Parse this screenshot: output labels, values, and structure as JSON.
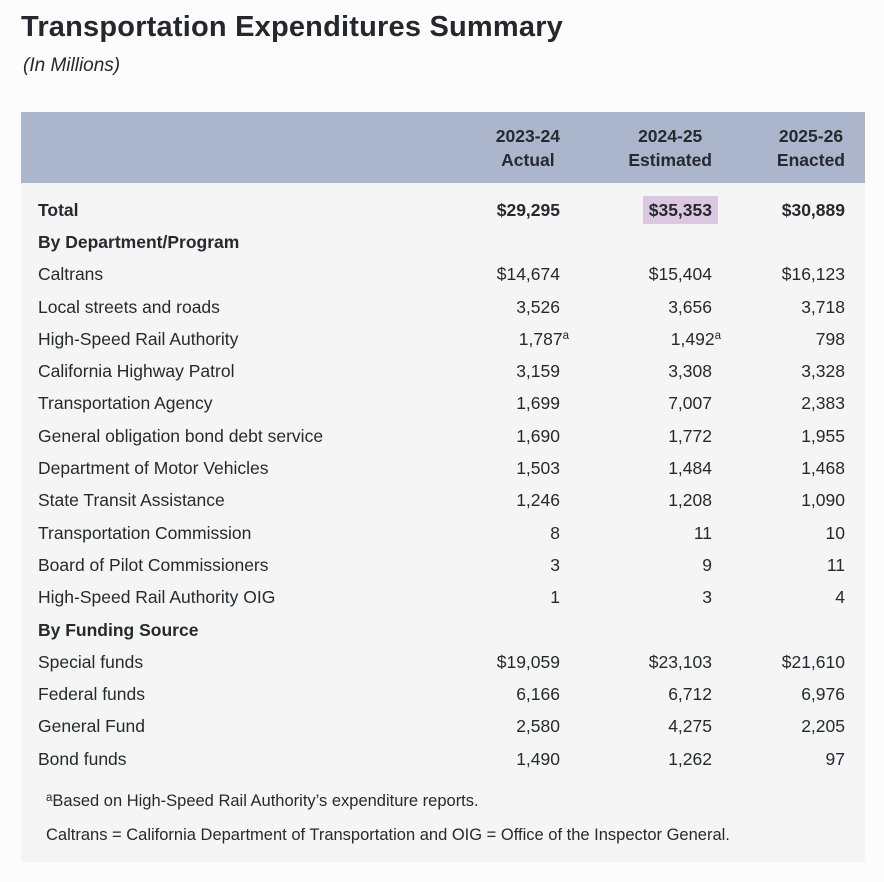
{
  "page": {
    "title": "Transportation Expenditures Summary",
    "subtitle": "(In Millions)"
  },
  "colors": {
    "header_bg": "#abb6cc",
    "body_bg": "#f5f5f6",
    "highlight_bg": "#dbc8e0",
    "text": "#26292e",
    "page_bg": "#fcfcfd"
  },
  "table": {
    "columns": [
      {
        "line1": "2023-24",
        "line2": "Actual"
      },
      {
        "line1": "2024-25",
        "line2": "Estimated"
      },
      {
        "line1": "2025-26",
        "line2": "Enacted"
      }
    ],
    "rows": [
      {
        "label": "Total",
        "style": "bold",
        "values": [
          "$29,295",
          "$35,353",
          "$30,889"
        ],
        "highlight": [
          false,
          true,
          false
        ],
        "sup": [
          "",
          "",
          ""
        ]
      },
      {
        "label": "By Department/Program",
        "style": "section",
        "values": [
          "",
          "",
          ""
        ],
        "highlight": [
          false,
          false,
          false
        ],
        "sup": [
          "",
          "",
          ""
        ]
      },
      {
        "label": "Caltrans",
        "style": "",
        "values": [
          "$14,674",
          "$15,404",
          "$16,123"
        ],
        "highlight": [
          false,
          false,
          false
        ],
        "sup": [
          "",
          "",
          ""
        ]
      },
      {
        "label": "Local streets and roads",
        "style": "",
        "values": [
          "3,526",
          "3,656",
          "3,718"
        ],
        "highlight": [
          false,
          false,
          false
        ],
        "sup": [
          "",
          "",
          ""
        ]
      },
      {
        "label": "High-Speed Rail Authority",
        "style": "",
        "values": [
          "1,787",
          "1,492",
          "798"
        ],
        "highlight": [
          false,
          false,
          false
        ],
        "sup": [
          "a",
          "a",
          ""
        ]
      },
      {
        "label": "California Highway Patrol",
        "style": "",
        "values": [
          "3,159",
          "3,308",
          "3,328"
        ],
        "highlight": [
          false,
          false,
          false
        ],
        "sup": [
          "",
          "",
          ""
        ]
      },
      {
        "label": "Transportation Agency",
        "style": "",
        "values": [
          "1,699",
          "7,007",
          "2,383"
        ],
        "highlight": [
          false,
          false,
          false
        ],
        "sup": [
          "",
          "",
          ""
        ]
      },
      {
        "label": "General obligation bond debt service",
        "style": "",
        "values": [
          "1,690",
          "1,772",
          "1,955"
        ],
        "highlight": [
          false,
          false,
          false
        ],
        "sup": [
          "",
          "",
          ""
        ]
      },
      {
        "label": "Department of Motor Vehicles",
        "style": "",
        "values": [
          "1,503",
          "1,484",
          "1,468"
        ],
        "highlight": [
          false,
          false,
          false
        ],
        "sup": [
          "",
          "",
          ""
        ]
      },
      {
        "label": "State Transit Assistance",
        "style": "",
        "values": [
          "1,246",
          "1,208",
          "1,090"
        ],
        "highlight": [
          false,
          false,
          false
        ],
        "sup": [
          "",
          "",
          ""
        ]
      },
      {
        "label": "Transportation Commission",
        "style": "",
        "values": [
          "8",
          "11",
          "10"
        ],
        "highlight": [
          false,
          false,
          false
        ],
        "sup": [
          "",
          "",
          ""
        ]
      },
      {
        "label": "Board of Pilot Commissioners",
        "style": "",
        "values": [
          "3",
          "9",
          "11"
        ],
        "highlight": [
          false,
          false,
          false
        ],
        "sup": [
          "",
          "",
          ""
        ]
      },
      {
        "label": "High-Speed Rail Authority OIG",
        "style": "",
        "values": [
          "1",
          "3",
          "4"
        ],
        "highlight": [
          false,
          false,
          false
        ],
        "sup": [
          "",
          "",
          ""
        ]
      },
      {
        "label": "By Funding Source",
        "style": "section",
        "values": [
          "",
          "",
          ""
        ],
        "highlight": [
          false,
          false,
          false
        ],
        "sup": [
          "",
          "",
          ""
        ]
      },
      {
        "label": "Special funds",
        "style": "",
        "values": [
          "$19,059",
          "$23,103",
          "$21,610"
        ],
        "highlight": [
          false,
          false,
          false
        ],
        "sup": [
          "",
          "",
          ""
        ]
      },
      {
        "label": "Federal funds",
        "style": "",
        "values": [
          "6,166",
          "6,712",
          "6,976"
        ],
        "highlight": [
          false,
          false,
          false
        ],
        "sup": [
          "",
          "",
          ""
        ]
      },
      {
        "label": "General Fund",
        "style": "",
        "values": [
          "2,580",
          "4,275",
          "2,205"
        ],
        "highlight": [
          false,
          false,
          false
        ],
        "sup": [
          "",
          "",
          ""
        ]
      },
      {
        "label": "Bond funds",
        "style": "",
        "values": [
          "1,490",
          "1,262",
          "97"
        ],
        "highlight": [
          false,
          false,
          false
        ],
        "sup": [
          "",
          "",
          ""
        ]
      }
    ],
    "footnotes": [
      {
        "marker": "a",
        "text": "Based on High-Speed Rail Authority’s expenditure reports."
      },
      {
        "marker": "",
        "text": "Caltrans = California Department of Transportation and OIG = Office of the Inspector General."
      }
    ]
  }
}
